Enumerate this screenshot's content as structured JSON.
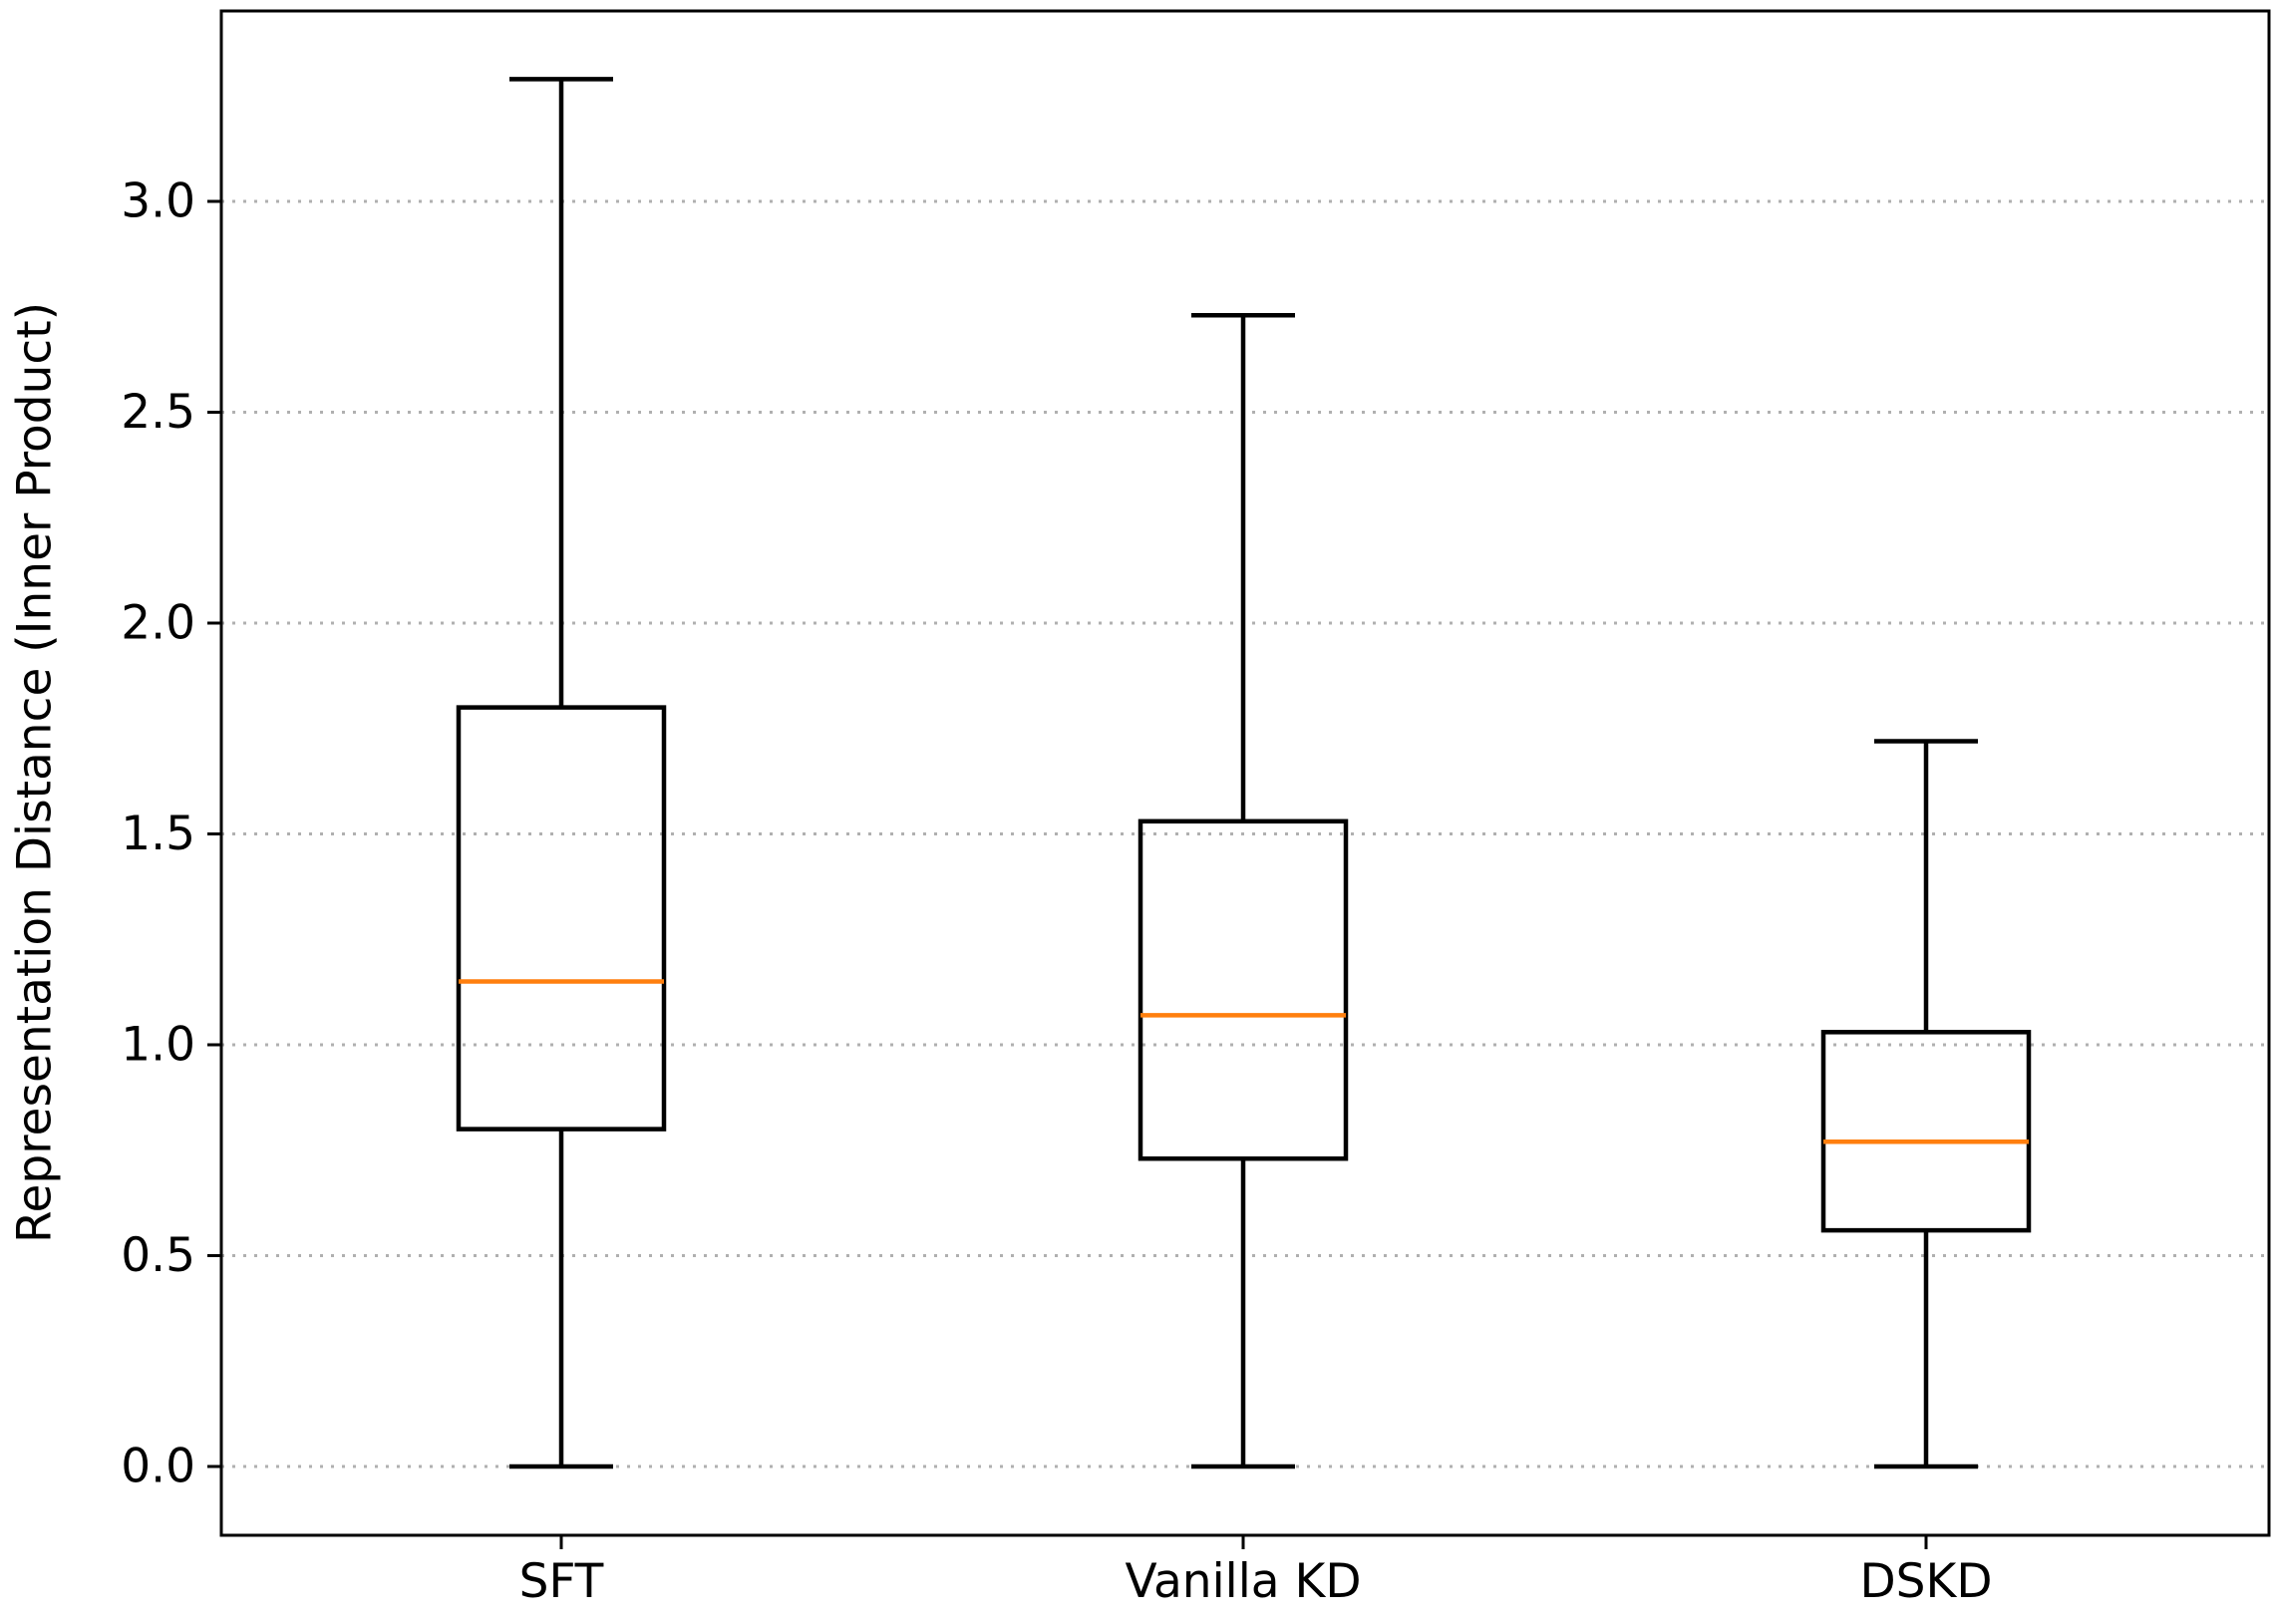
{
  "chart_data": {
    "type": "box",
    "title": "",
    "xlabel": "",
    "ylabel": "Representation Distance (Inner Product)",
    "ylim": [
      -0.16,
      3.45
    ],
    "yticks": [
      0.0,
      0.5,
      1.0,
      1.5,
      2.0,
      2.5,
      3.0
    ],
    "ytick_labels": [
      "0.0",
      "0.5",
      "1.0",
      "1.5",
      "2.0",
      "2.5",
      "3.0"
    ],
    "grid": "y-dotted",
    "categories": [
      "SFT",
      "Vanilla KD",
      "DSKD"
    ],
    "boxes": [
      {
        "name": "SFT",
        "whisker_low": 0.0,
        "q1": 0.8,
        "median": 1.15,
        "q3": 1.8,
        "whisker_high": 3.29
      },
      {
        "name": "Vanilla KD",
        "whisker_low": 0.0,
        "q1": 0.73,
        "median": 1.07,
        "q3": 1.53,
        "whisker_high": 2.73
      },
      {
        "name": "DSKD",
        "whisker_low": 0.0,
        "q1": 0.56,
        "median": 0.77,
        "q3": 1.03,
        "whisker_high": 1.72
      }
    ],
    "colors": {
      "box": "#000000",
      "median": "#ff7f0e",
      "grid": "#b0b0b0"
    }
  }
}
